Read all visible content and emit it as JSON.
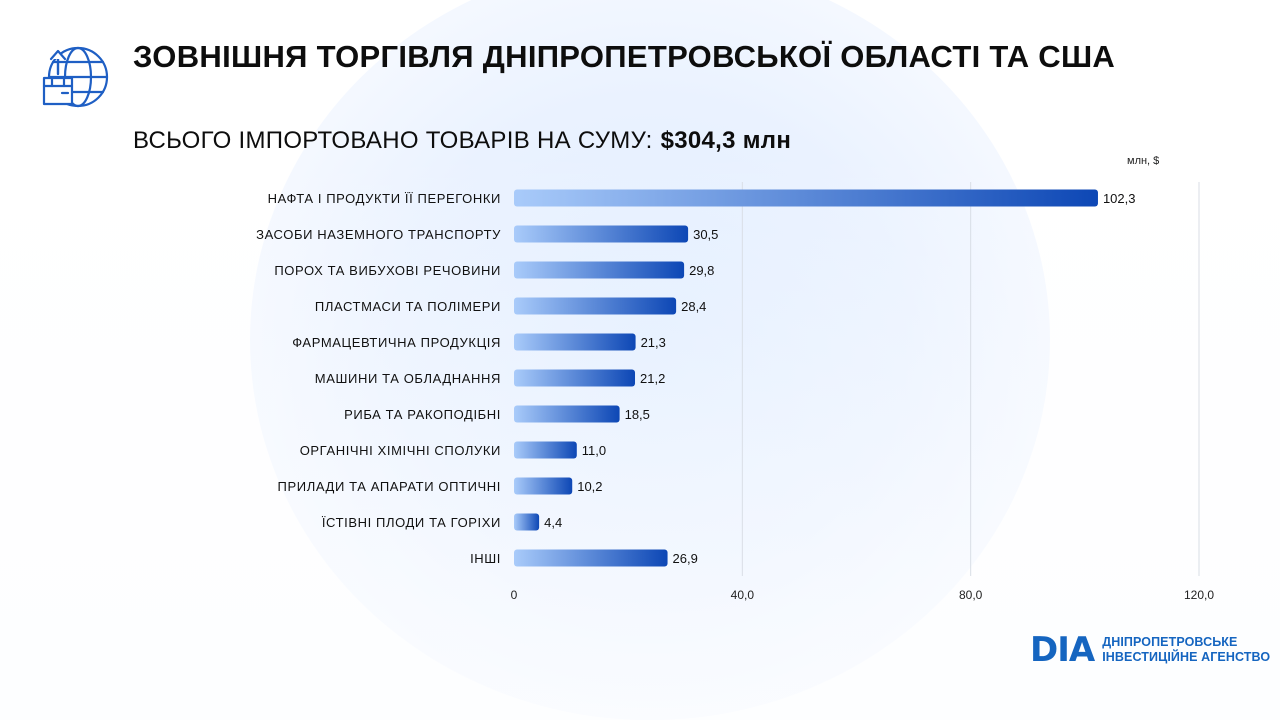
{
  "header": {
    "title": "ЗОВНІШНЯ ТОРГІВЛЯ ДНІПРОПЕТРОВСЬКОЇ ОБЛАСТІ ТА США",
    "subtitle_label": "ВСЬОГО ІМПОРТОВАНО ТОВАРІВ НА СУМУ:",
    "subtitle_value": "$304,3 млн",
    "icon": "globe-box-icon"
  },
  "chart_data": {
    "type": "bar",
    "orientation": "horizontal",
    "unit_label": "млн, $",
    "categories": [
      "НАФТА І ПРОДУКТИ ЇЇ ПЕРЕГОНКИ",
      "ЗАСОБИ НАЗЕМНОГО ТРАНСПОРТУ",
      "ПОРОХ ТА ВИБУХОВІ РЕЧОВИНИ",
      "ПЛАСТМАСИ ТА ПОЛІМЕРИ",
      "ФАРМАЦЕВТИЧНА ПРОДУКЦІЯ",
      "МАШИНИ ТА ОБЛАДНАННЯ",
      "РИБА ТА РАКОПОДІБНІ",
      "ОРГАНІЧНІ ХІМІЧНІ СПОЛУКИ",
      "ПРИЛАДИ ТА АПАРАТИ ОПТИЧНІ",
      "ЇСТІВНІ ПЛОДИ ТА ГОРІХИ",
      "ІНШІ"
    ],
    "values": [
      102.3,
      30.5,
      29.8,
      28.4,
      21.3,
      21.2,
      18.5,
      11.0,
      10.2,
      4.4,
      26.9
    ],
    "value_labels": [
      "102,3",
      "30,5",
      "29,8",
      "28,4",
      "21,3",
      "21,2",
      "18,5",
      "11,0",
      "10,2",
      "4,4",
      "26,9"
    ],
    "xlim": [
      0,
      120
    ],
    "x_ticks": [
      0,
      40,
      80,
      120
    ],
    "x_tick_labels": [
      "0",
      "40,0",
      "80,0",
      "120,0"
    ],
    "grid": "vertical",
    "bar_color_start": "#a9cbfa",
    "bar_color_end": "#0d47b5"
  },
  "brand": {
    "mark": "DIA",
    "line1": "ДНІПРОПЕТРОВСЬКЕ",
    "line2": "ІНВЕСТИЦІЙНЕ АГЕНСТВО",
    "color": "#1565c0"
  }
}
